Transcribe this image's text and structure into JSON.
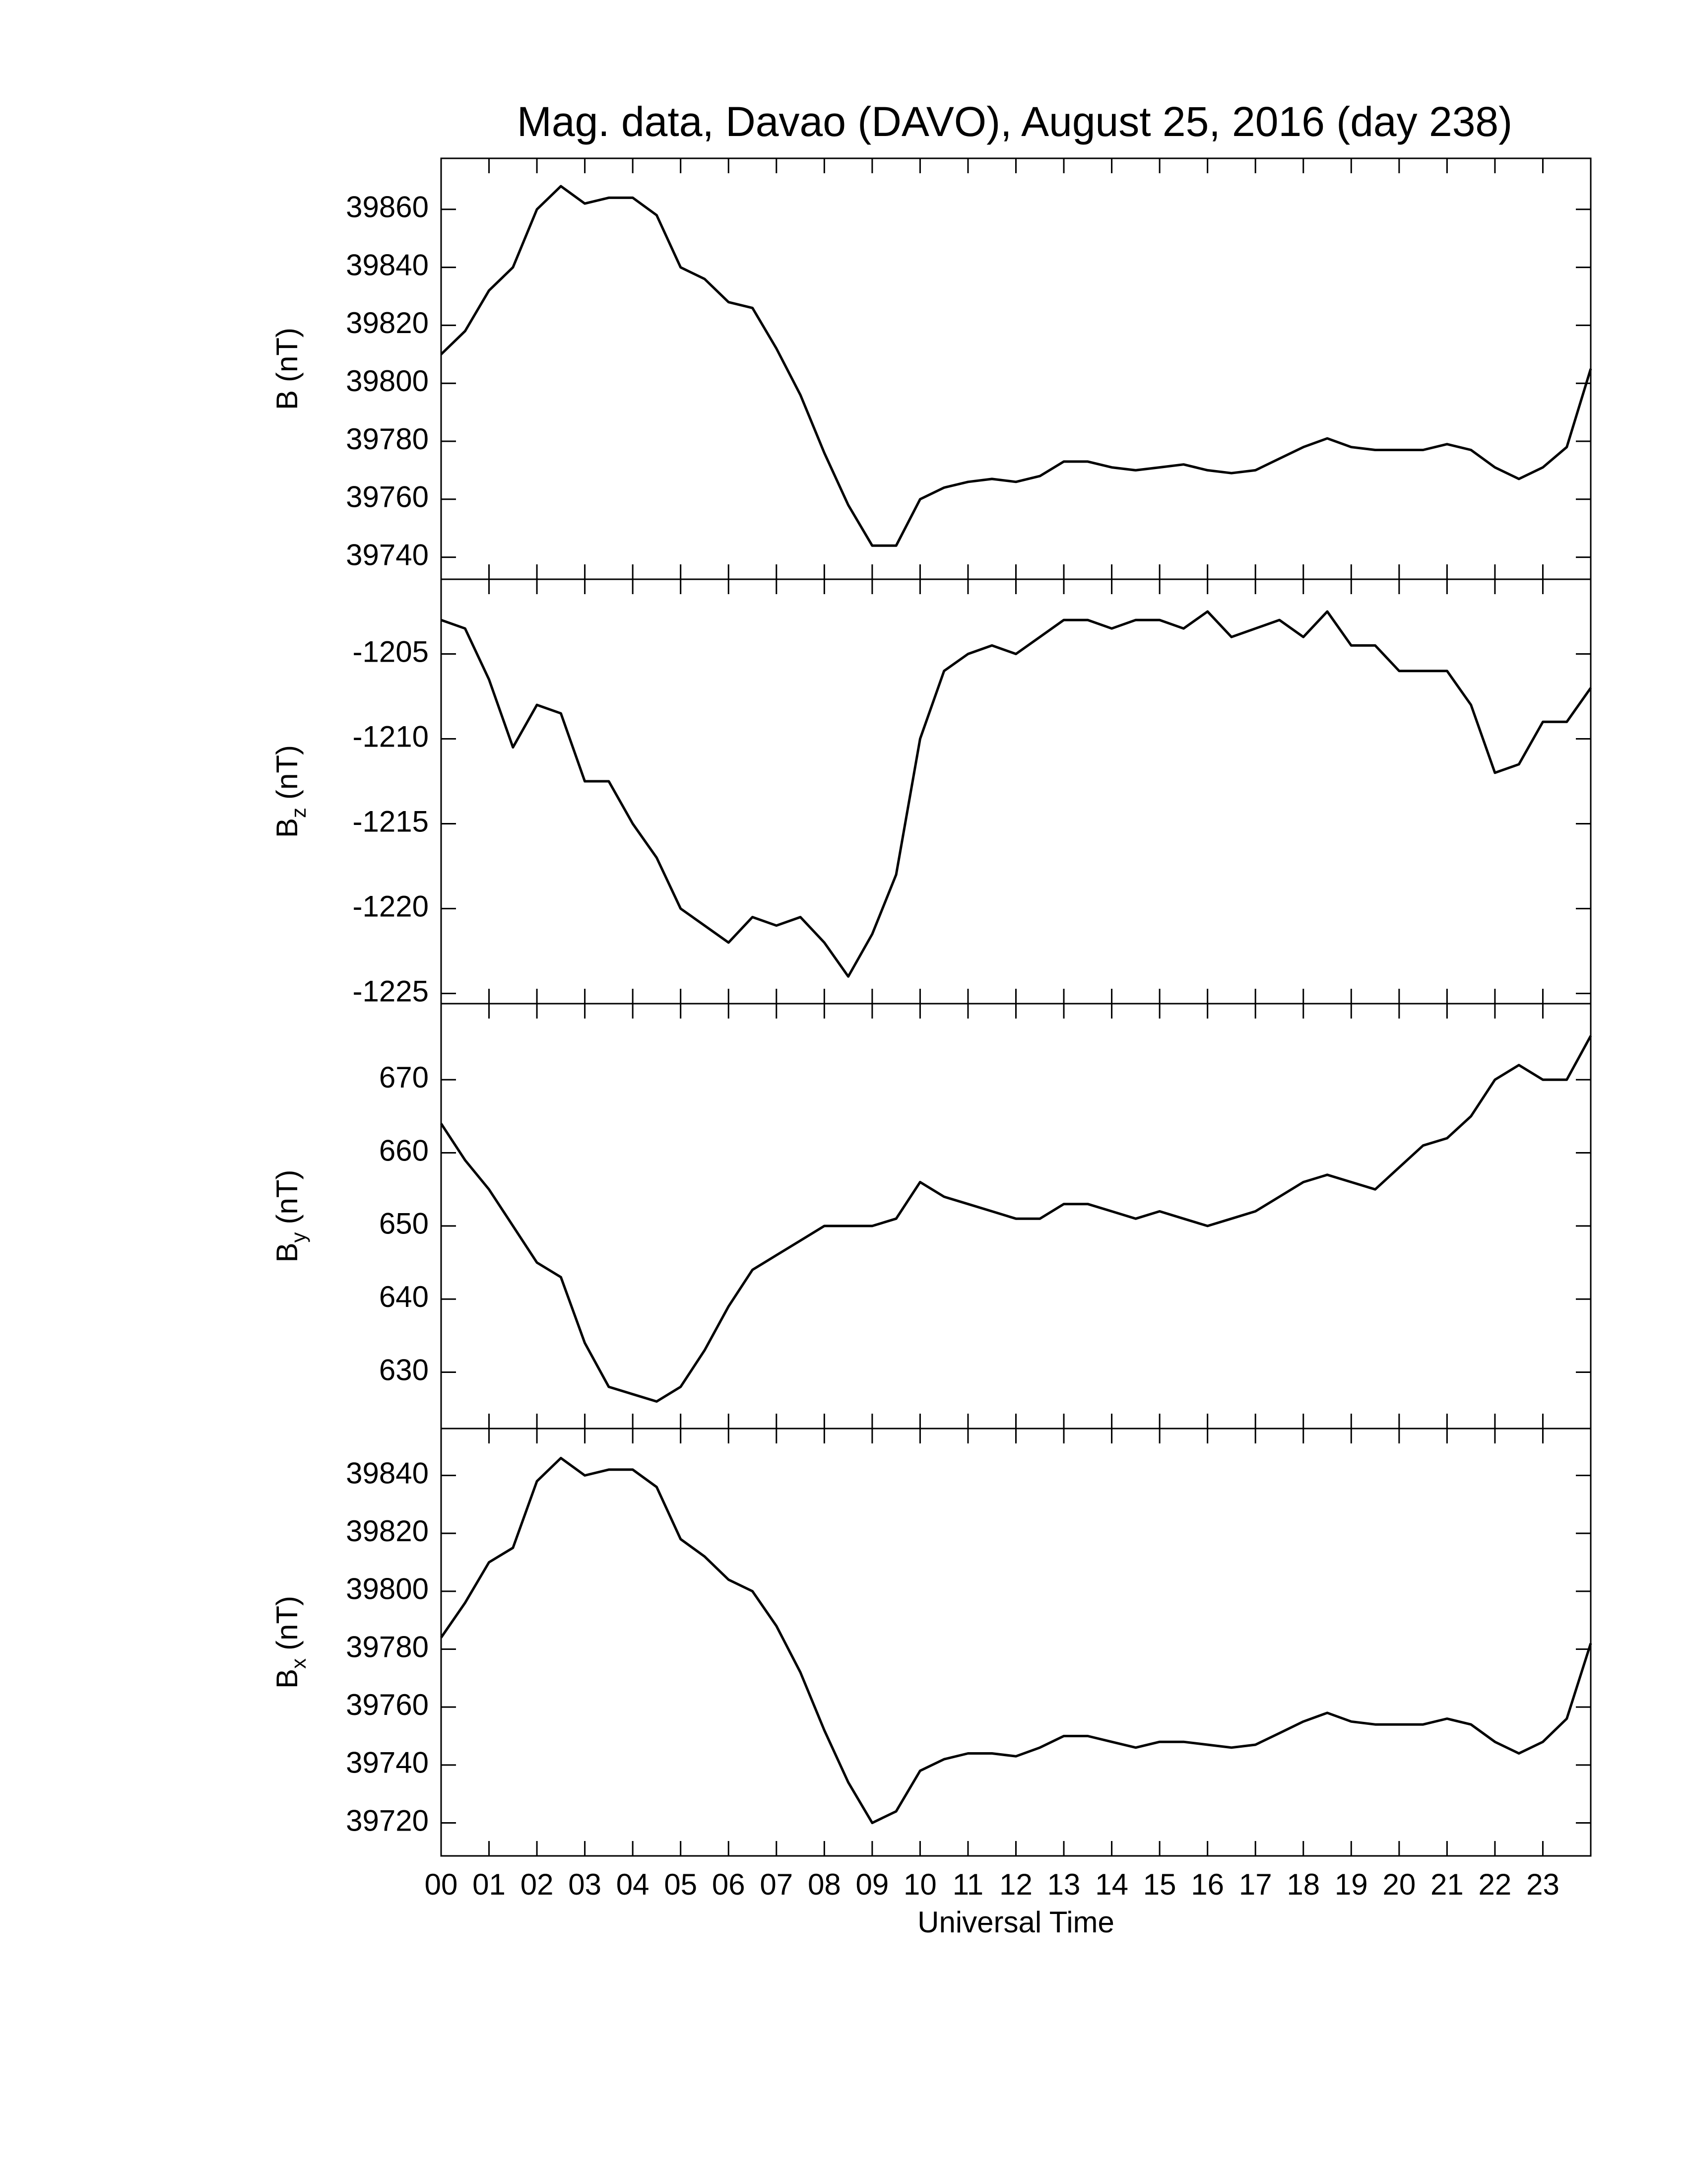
{
  "chart_data": [
    {
      "type": "line",
      "title": "Mag. data, Davao (DAVO), August 25, 2016 (day 238)",
      "ylabel": {
        "symbol": "B",
        "unit": "(nT)"
      },
      "color": "#000000",
      "x": [
        0,
        0.5,
        1,
        1.5,
        2,
        2.5,
        3,
        3.5,
        4,
        4.5,
        5,
        5.5,
        6,
        6.5,
        7,
        7.5,
        8,
        8.5,
        9,
        9.5,
        10,
        10.5,
        11,
        11.5,
        12,
        12.5,
        13,
        13.5,
        14,
        14.5,
        15,
        15.5,
        16,
        16.5,
        17,
        17.5,
        18,
        18.5,
        19,
        19.5,
        20,
        20.5,
        21,
        21.5,
        22,
        22.5,
        23,
        23.5,
        24
      ],
      "values": [
        39810,
        39818,
        39832,
        39840,
        39860,
        39868,
        39862,
        39864,
        39864,
        39858,
        39840,
        39836,
        39828,
        39826,
        39812,
        39796,
        39776,
        39758,
        39744,
        39744,
        39760,
        39764,
        39766,
        39767,
        39766,
        39768,
        39773,
        39773,
        39771,
        39770,
        39771,
        39772,
        39770,
        39769,
        39770,
        39774,
        39778,
        39781,
        39778,
        39777,
        39777,
        39777,
        39779,
        39777,
        39771,
        39767,
        39771,
        39778,
        39805
      ],
      "xlim": [
        0,
        24
      ],
      "ylim": [
        39732.4,
        39877.6
      ],
      "yticks": [
        39740,
        39760,
        39780,
        39800,
        39820,
        39840,
        39860
      ]
    },
    {
      "type": "line",
      "ylabel": {
        "symbol": "B",
        "subscript": "z",
        "unit": "(nT)"
      },
      "color": "#000000",
      "x": [
        0,
        0.5,
        1,
        1.5,
        2,
        2.5,
        3,
        3.5,
        4,
        4.5,
        5,
        5.5,
        6,
        6.5,
        7,
        7.5,
        8,
        8.5,
        9,
        9.5,
        10,
        10.5,
        11,
        11.5,
        12,
        12.5,
        13,
        13.5,
        14,
        14.5,
        15,
        15.5,
        16,
        16.5,
        17,
        17.5,
        18,
        18.5,
        19,
        19.5,
        20,
        20.5,
        21,
        21.5,
        22,
        22.5,
        23,
        23.5,
        24
      ],
      "values": [
        -1203,
        -1203.5,
        -1206.5,
        -1210.5,
        -1208,
        -1208.5,
        -1212.5,
        -1212.5,
        -1215,
        -1217,
        -1220,
        -1221,
        -1222,
        -1220.5,
        -1221,
        -1220.5,
        -1222,
        -1224,
        -1221.5,
        -1218,
        -1210,
        -1206,
        -1205,
        -1204.5,
        -1205,
        -1204,
        -1203,
        -1203,
        -1203.5,
        -1203,
        -1203,
        -1203.5,
        -1202.5,
        -1204,
        -1203.5,
        -1203,
        -1204,
        -1202.5,
        -1204.5,
        -1204.5,
        -1206,
        -1206,
        -1206,
        -1208,
        -1212,
        -1211.5,
        -1209,
        -1209,
        -1207
      ],
      "xlim": [
        0,
        24
      ],
      "ylim": [
        -1225.6,
        -1200.6
      ],
      "yticks": [
        -1225,
        -1220,
        -1215,
        -1210,
        -1205
      ]
    },
    {
      "type": "line",
      "ylabel": {
        "symbol": "B",
        "subscript": "y",
        "unit": "(nT)"
      },
      "color": "#000000",
      "x": [
        0,
        0.5,
        1,
        1.5,
        2,
        2.5,
        3,
        3.5,
        4,
        4.5,
        5,
        5.5,
        6,
        6.5,
        7,
        7.5,
        8,
        8.5,
        9,
        9.5,
        10,
        10.5,
        11,
        11.5,
        12,
        12.5,
        13,
        13.5,
        14,
        14.5,
        15,
        15.5,
        16,
        16.5,
        17,
        17.5,
        18,
        18.5,
        19,
        19.5,
        20,
        20.5,
        21,
        21.5,
        22,
        22.5,
        23,
        23.5,
        24
      ],
      "values": [
        664,
        659,
        655,
        650,
        645,
        643,
        634,
        628,
        627,
        626,
        628,
        633,
        639,
        644,
        646,
        648,
        650,
        650,
        650,
        651,
        656,
        654,
        653,
        652,
        651,
        651,
        653,
        653,
        652,
        651,
        652,
        651,
        650,
        651,
        652,
        654,
        656,
        657,
        656,
        655,
        658,
        661,
        662,
        665,
        670,
        672,
        670,
        670,
        676
      ],
      "xlim": [
        0,
        24
      ],
      "ylim": [
        622.3,
        680.4
      ],
      "yticks": [
        630,
        640,
        650,
        660,
        670
      ]
    },
    {
      "type": "line",
      "ylabel": {
        "symbol": "B",
        "subscript": "x",
        "unit": "(nT)"
      },
      "xlabel": "Universal Time",
      "color": "#000000",
      "x": [
        0,
        0.5,
        1,
        1.5,
        2,
        2.5,
        3,
        3.5,
        4,
        4.5,
        5,
        5.5,
        6,
        6.5,
        7,
        7.5,
        8,
        8.5,
        9,
        9.5,
        10,
        10.5,
        11,
        11.5,
        12,
        12.5,
        13,
        13.5,
        14,
        14.5,
        15,
        15.5,
        16,
        16.5,
        17,
        17.5,
        18,
        18.5,
        19,
        19.5,
        20,
        20.5,
        21,
        21.5,
        22,
        22.5,
        23,
        23.5,
        24
      ],
      "values": [
        39784,
        39796,
        39810,
        39815,
        39838,
        39846,
        39840,
        39842,
        39842,
        39836,
        39818,
        39812,
        39804,
        39800,
        39788,
        39772,
        39752,
        39734,
        39720,
        39724,
        39738,
        39742,
        39744,
        39744,
        39743,
        39746,
        39750,
        39750,
        39748,
        39746,
        39748,
        39748,
        39747,
        39746,
        39747,
        39751,
        39755,
        39758,
        39755,
        39754,
        39754,
        39754,
        39756,
        39754,
        39748,
        39744,
        39748,
        39756,
        39782
      ],
      "xlim": [
        0,
        24
      ],
      "ylim": [
        39708.6,
        39856.2
      ],
      "yticks": [
        39720,
        39740,
        39760,
        39780,
        39800,
        39820,
        39840
      ],
      "xticks": [
        {
          "value": 0,
          "label": "00"
        },
        {
          "value": 1,
          "label": "01"
        },
        {
          "value": 2,
          "label": "02"
        },
        {
          "value": 3,
          "label": "03"
        },
        {
          "value": 4,
          "label": "04"
        },
        {
          "value": 5,
          "label": "05"
        },
        {
          "value": 6,
          "label": "06"
        },
        {
          "value": 7,
          "label": "07"
        },
        {
          "value": 8,
          "label": "08"
        },
        {
          "value": 9,
          "label": "09"
        },
        {
          "value": 10,
          "label": "10"
        },
        {
          "value": 11,
          "label": "11"
        },
        {
          "value": 12,
          "label": "12"
        },
        {
          "value": 13,
          "label": "13"
        },
        {
          "value": 14,
          "label": "14"
        },
        {
          "value": 15,
          "label": "15"
        },
        {
          "value": 16,
          "label": "16"
        },
        {
          "value": 17,
          "label": "17"
        },
        {
          "value": 18,
          "label": "18"
        },
        {
          "value": 19,
          "label": "19"
        },
        {
          "value": 20,
          "label": "20"
        },
        {
          "value": 21,
          "label": "21"
        },
        {
          "value": 22,
          "label": "22"
        },
        {
          "value": 23,
          "label": "23"
        }
      ]
    }
  ]
}
